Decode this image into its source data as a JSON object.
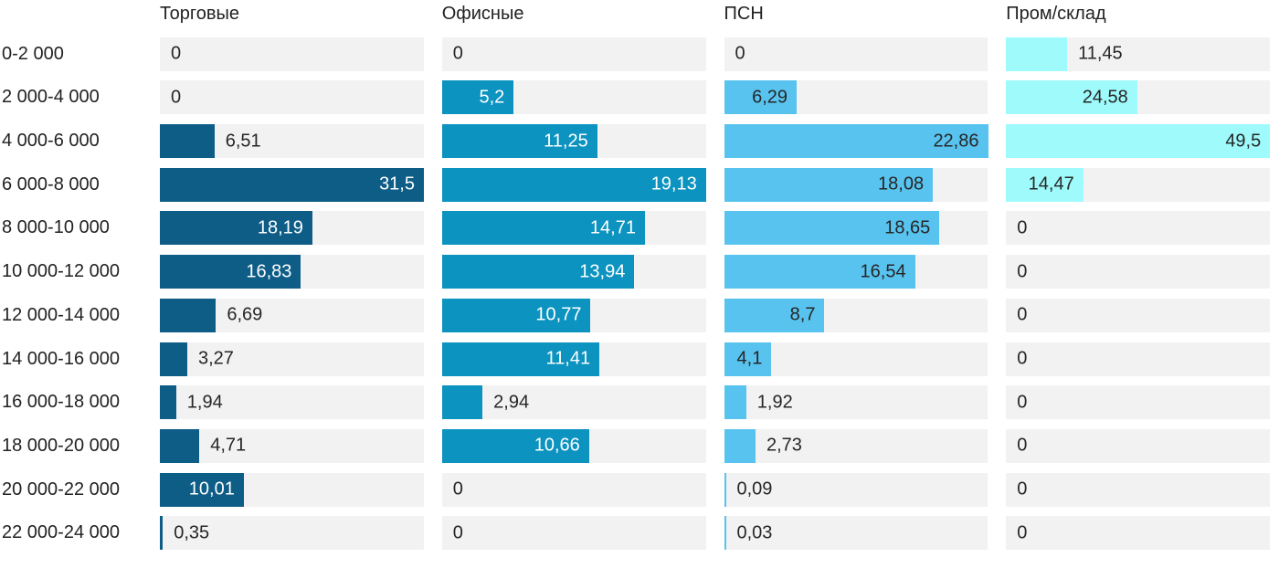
{
  "chart_data": {
    "type": "bar",
    "orientation": "horizontal",
    "layout": "small-multiples-per-column",
    "scale_note": "each column is scaled independently so its maximum value fills the full track width",
    "categories": [
      "0-2 000",
      "2 000-4 000",
      "4 000-6 000",
      "6 000-8 000",
      "8 000-10 000",
      "10 000-12 000",
      "12 000-14 000",
      "14 000-16 000",
      "16 000-18 000",
      "18 000-20 000",
      "20 000-22 000",
      "22 000-24 000"
    ],
    "series": [
      {
        "name": "Торговые",
        "color": "#0e5d87",
        "value_label_color_inside": "#ffffff",
        "values": [
          0,
          0,
          6.51,
          31.5,
          18.19,
          16.83,
          6.69,
          3.27,
          1.94,
          4.71,
          10.01,
          0.35
        ],
        "value_labels": [
          "0",
          "0",
          "6,51",
          "31,5",
          "18,19",
          "16,83",
          "6,69",
          "3,27",
          "1,94",
          "4,71",
          "10,01",
          "0,35"
        ]
      },
      {
        "name": "Офисные",
        "color": "#0c93c0",
        "value_label_color_inside": "#ffffff",
        "values": [
          0,
          5.2,
          11.25,
          19.13,
          14.71,
          13.94,
          10.77,
          11.41,
          2.94,
          10.66,
          0,
          0
        ],
        "value_labels": [
          "0",
          "5,2",
          "11,25",
          "19,13",
          "14,71",
          "13,94",
          "10,77",
          "11,41",
          "2,94",
          "10,66",
          "0",
          "0"
        ]
      },
      {
        "name": "ПСН",
        "color": "#58c3ef",
        "value_label_color_inside": "#262626",
        "values": [
          0,
          6.29,
          22.86,
          18.08,
          18.65,
          16.54,
          8.7,
          4.1,
          1.92,
          2.73,
          0.09,
          0.03
        ],
        "value_labels": [
          "0",
          "6,29",
          "22,86",
          "18,08",
          "18,65",
          "16,54",
          "8,7",
          "4,1",
          "1,92",
          "2,73",
          "0,09",
          "0,03"
        ]
      },
      {
        "name": "Пром/склад",
        "color": "#9ffbfb",
        "value_label_color_inside": "#262626",
        "values": [
          11.45,
          24.58,
          49.5,
          14.47,
          0,
          0,
          0,
          0,
          0,
          0,
          0,
          0
        ],
        "value_labels": [
          "11,45",
          "24,58",
          "49,5",
          "14,47",
          "0",
          "0",
          "0",
          "0",
          "0",
          "0",
          "0",
          "0"
        ]
      }
    ],
    "colors": {
      "track": "#f2f2f2",
      "header_text": "#222222",
      "category_text": "#222222",
      "value_text_outside": "#262626",
      "background": "#ffffff"
    }
  }
}
